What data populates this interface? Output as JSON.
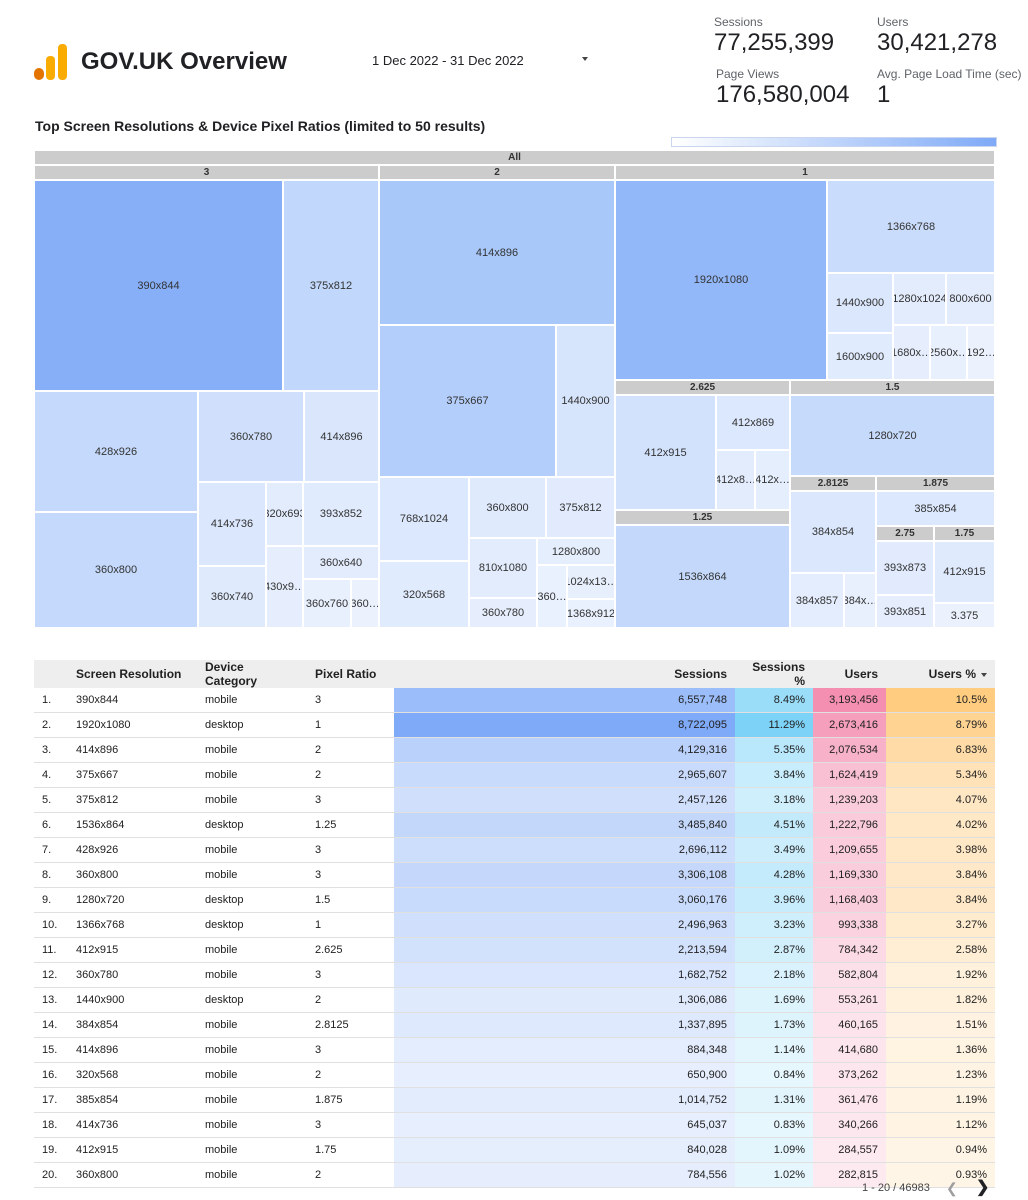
{
  "header": {
    "title": "GOV.UK Overview",
    "date_range": "1 Dec 2022 - 31 Dec 2022",
    "logo_icon": "analytics-bars-icon"
  },
  "kpis": {
    "sessions": {
      "label": "Sessions",
      "value": "77,255,399"
    },
    "users": {
      "label": "Users",
      "value": "30,421,278"
    },
    "page_views": {
      "label": "Page Views",
      "value": "176,580,004"
    },
    "avg_load": {
      "label": "Avg. Page Load Time (sec)",
      "value": "1"
    }
  },
  "treemap": {
    "title": "Top Screen Resolutions & Device Pixel Ratios (limited to 50 results)",
    "root_label": "All",
    "color_scale": [
      "#ffffff",
      "#7faaf7"
    ],
    "groups": [
      {
        "label": "3",
        "cells": [
          "390x844",
          "375x812",
          "428x926",
          "360x780",
          "414x896",
          "360x800",
          "414x736",
          "360x740",
          "320x693",
          "393x852",
          "430x9…",
          "360x640",
          "360x760",
          "360…"
        ]
      },
      {
        "label": "2",
        "cells": [
          "414x896",
          "375x667",
          "1440x900",
          "768x1024",
          "360x800",
          "375x812",
          "320x568",
          "810x1080",
          "1280x800",
          "360x780",
          "360…",
          "1024x13…",
          "1368x912"
        ]
      },
      {
        "label": "1",
        "cells": [
          "1920x1080",
          "1366x768",
          "1440x900",
          "1280x1024",
          "800x600",
          "1600x900",
          "1680x…",
          "2560x…",
          "192…"
        ]
      },
      {
        "label": "2.625",
        "cells": [
          "412x915",
          "412x869",
          "412x8…",
          "412x…"
        ]
      },
      {
        "label": "1.5",
        "cells": [
          "1280x720"
        ]
      },
      {
        "label": "1.25",
        "cells": [
          "1536x864"
        ]
      },
      {
        "label": "2.8125",
        "cells": [
          "384x854",
          "384x857",
          "384x…"
        ]
      },
      {
        "label": "1.875",
        "cells": [
          "385x854"
        ]
      },
      {
        "label": "2.75",
        "cells": [
          "393x873",
          "393x851"
        ]
      },
      {
        "label": "1.75",
        "cells": [
          "412x915"
        ]
      },
      {
        "label": "3.375",
        "cells": []
      }
    ]
  },
  "table": {
    "columns": [
      "Screen Resolution",
      "Device Category",
      "Pixel Ratio",
      "Sessions",
      "Sessions %",
      "Users",
      "Users %"
    ],
    "sort_column": "Users %",
    "colors": {
      "sessions": "#7faaf7",
      "sessions_pct": "#7dd3f7",
      "users": "#f48fb1",
      "users_pct": "#ffcc80"
    },
    "rows": [
      {
        "rank": "1.",
        "res": "390x844",
        "dev": "mobile",
        "ratio": "3",
        "sessions": "6,557,748",
        "sessions_pct": "8.49%",
        "users": "3,193,456",
        "users_pct": "10.5%"
      },
      {
        "rank": "2.",
        "res": "1920x1080",
        "dev": "desktop",
        "ratio": "1",
        "sessions": "8,722,095",
        "sessions_pct": "11.29%",
        "users": "2,673,416",
        "users_pct": "8.79%"
      },
      {
        "rank": "3.",
        "res": "414x896",
        "dev": "mobile",
        "ratio": "2",
        "sessions": "4,129,316",
        "sessions_pct": "5.35%",
        "users": "2,076,534",
        "users_pct": "6.83%"
      },
      {
        "rank": "4.",
        "res": "375x667",
        "dev": "mobile",
        "ratio": "2",
        "sessions": "2,965,607",
        "sessions_pct": "3.84%",
        "users": "1,624,419",
        "users_pct": "5.34%"
      },
      {
        "rank": "5.",
        "res": "375x812",
        "dev": "mobile",
        "ratio": "3",
        "sessions": "2,457,126",
        "sessions_pct": "3.18%",
        "users": "1,239,203",
        "users_pct": "4.07%"
      },
      {
        "rank": "6.",
        "res": "1536x864",
        "dev": "desktop",
        "ratio": "1.25",
        "sessions": "3,485,840",
        "sessions_pct": "4.51%",
        "users": "1,222,796",
        "users_pct": "4.02%"
      },
      {
        "rank": "7.",
        "res": "428x926",
        "dev": "mobile",
        "ratio": "3",
        "sessions": "2,696,112",
        "sessions_pct": "3.49%",
        "users": "1,209,655",
        "users_pct": "3.98%"
      },
      {
        "rank": "8.",
        "res": "360x800",
        "dev": "mobile",
        "ratio": "3",
        "sessions": "3,306,108",
        "sessions_pct": "4.28%",
        "users": "1,169,330",
        "users_pct": "3.84%"
      },
      {
        "rank": "9.",
        "res": "1280x720",
        "dev": "desktop",
        "ratio": "1.5",
        "sessions": "3,060,176",
        "sessions_pct": "3.96%",
        "users": "1,168,403",
        "users_pct": "3.84%"
      },
      {
        "rank": "10.",
        "res": "1366x768",
        "dev": "desktop",
        "ratio": "1",
        "sessions": "2,496,963",
        "sessions_pct": "3.23%",
        "users": "993,338",
        "users_pct": "3.27%"
      },
      {
        "rank": "11.",
        "res": "412x915",
        "dev": "mobile",
        "ratio": "2.625",
        "sessions": "2,213,594",
        "sessions_pct": "2.87%",
        "users": "784,342",
        "users_pct": "2.58%"
      },
      {
        "rank": "12.",
        "res": "360x780",
        "dev": "mobile",
        "ratio": "3",
        "sessions": "1,682,752",
        "sessions_pct": "2.18%",
        "users": "582,804",
        "users_pct": "1.92%"
      },
      {
        "rank": "13.",
        "res": "1440x900",
        "dev": "desktop",
        "ratio": "2",
        "sessions": "1,306,086",
        "sessions_pct": "1.69%",
        "users": "553,261",
        "users_pct": "1.82%"
      },
      {
        "rank": "14.",
        "res": "384x854",
        "dev": "mobile",
        "ratio": "2.8125",
        "sessions": "1,337,895",
        "sessions_pct": "1.73%",
        "users": "460,165",
        "users_pct": "1.51%"
      },
      {
        "rank": "15.",
        "res": "414x896",
        "dev": "mobile",
        "ratio": "3",
        "sessions": "884,348",
        "sessions_pct": "1.14%",
        "users": "414,680",
        "users_pct": "1.36%"
      },
      {
        "rank": "16.",
        "res": "320x568",
        "dev": "mobile",
        "ratio": "2",
        "sessions": "650,900",
        "sessions_pct": "0.84%",
        "users": "373,262",
        "users_pct": "1.23%"
      },
      {
        "rank": "17.",
        "res": "385x854",
        "dev": "mobile",
        "ratio": "1.875",
        "sessions": "1,014,752",
        "sessions_pct": "1.31%",
        "users": "361,476",
        "users_pct": "1.19%"
      },
      {
        "rank": "18.",
        "res": "414x736",
        "dev": "mobile",
        "ratio": "3",
        "sessions": "645,037",
        "sessions_pct": "0.83%",
        "users": "340,266",
        "users_pct": "1.12%"
      },
      {
        "rank": "19.",
        "res": "412x915",
        "dev": "mobile",
        "ratio": "1.75",
        "sessions": "840,028",
        "sessions_pct": "1.09%",
        "users": "284,557",
        "users_pct": "0.94%"
      },
      {
        "rank": "20.",
        "res": "360x800",
        "dev": "mobile",
        "ratio": "2",
        "sessions": "784,556",
        "sessions_pct": "1.02%",
        "users": "282,815",
        "users_pct": "0.93%"
      }
    ]
  },
  "pagination": {
    "text": "1 - 20 / 46983",
    "prev_icon": "chevron-left-icon",
    "next_icon": "chevron-right-icon"
  }
}
